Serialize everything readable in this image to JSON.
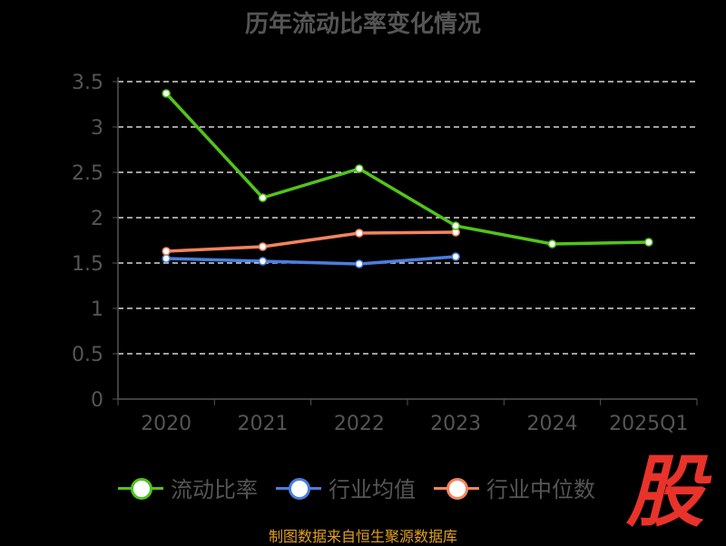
{
  "title": "历年流动比率变化情况",
  "source": "制图数据来自恒生聚源数据库",
  "watermark": "股",
  "chart_data": {
    "type": "line",
    "categories": [
      "2020",
      "2021",
      "2022",
      "2023",
      "2024",
      "2025Q1"
    ],
    "ylim": [
      0,
      3.5
    ],
    "yticks": [
      "0",
      "0.5",
      "1",
      "1.5",
      "2",
      "2.5",
      "3",
      "3.5"
    ],
    "grid": true,
    "legend_position": "bottom",
    "series": [
      {
        "name": "流动比率",
        "color": "#52c41a",
        "values": [
          3.37,
          2.22,
          2.54,
          1.91,
          1.71,
          1.73
        ]
      },
      {
        "name": "行业均值",
        "color": "#4a7fe0",
        "values": [
          1.55,
          1.52,
          1.49,
          1.57,
          null,
          null
        ]
      },
      {
        "name": "行业中位数",
        "color": "#f5845c",
        "values": [
          1.63,
          1.68,
          1.83,
          1.84,
          null,
          null
        ]
      }
    ]
  }
}
